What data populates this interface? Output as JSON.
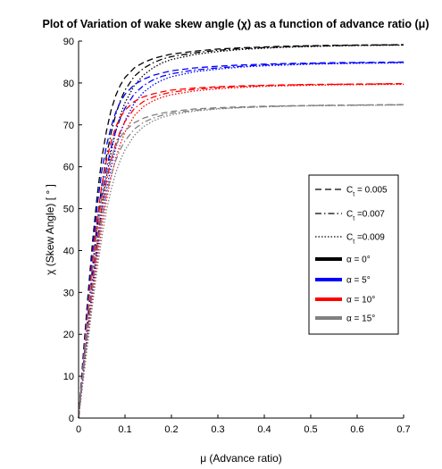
{
  "chart_data": {
    "type": "line",
    "title": "Plot of Variation of wake skew angle (χ) as a function of advance ratio (μ)",
    "xlabel": "μ (Advance ratio)",
    "ylabel": "χ (Skew Angle) [ ° ]",
    "xlim": [
      0,
      0.7
    ],
    "ylim": [
      0,
      90
    ],
    "xticks": [
      "0",
      "0.1",
      "0.2",
      "0.3",
      "0.4",
      "0.5",
      "0.6",
      "0.7"
    ],
    "yticks": [
      "0",
      "10",
      "20",
      "30",
      "40",
      "50",
      "60",
      "70",
      "80",
      "90"
    ],
    "grid": false,
    "legend_position": "right",
    "legend": [
      {
        "label": "C",
        "subscript": "t",
        "suffix": " = 0.005",
        "style": "dashed",
        "color": "#000000"
      },
      {
        "label": "C",
        "subscript": "t",
        "suffix": " =0.007",
        "style": "dashdot",
        "color": "#000000"
      },
      {
        "label": "C",
        "subscript": "t",
        "suffix": " =0.009",
        "style": "dotted",
        "color": "#000000"
      },
      {
        "label": "α = 0°",
        "style": "solid",
        "color": "#000000"
      },
      {
        "label": "α = 5°",
        "style": "solid",
        "color": "#0000ff"
      },
      {
        "label": "α = 10°",
        "style": "solid",
        "color": "#ff0000"
      },
      {
        "label": "α = 15°",
        "style": "solid",
        "color": "#808080"
      }
    ],
    "x": [
      0,
      0.01,
      0.02,
      0.03,
      0.04,
      0.05,
      0.06,
      0.07,
      0.08,
      0.09,
      0.1,
      0.12,
      0.14,
      0.16,
      0.18,
      0.2,
      0.25,
      0.3,
      0.35,
      0.4,
      0.45,
      0.5,
      0.55,
      0.6,
      0.65,
      0.7
    ],
    "series": [
      {
        "alpha": "0",
        "ct": "0.005",
        "color": "#000000",
        "style": "dashed",
        "values": [
          0,
          15,
          29,
          42,
          53,
          62,
          68.5,
          73.5,
          77,
          79.5,
          81.3,
          83.6,
          84.9,
          85.8,
          86.4,
          86.9,
          87.6,
          88.1,
          88.4,
          88.6,
          88.8,
          88.9,
          89.0,
          89.05,
          89.1,
          89.15
        ]
      },
      {
        "alpha": "0",
        "ct": "0.007",
        "color": "#000000",
        "style": "dashdot",
        "values": [
          0,
          12,
          24,
          36,
          46.5,
          55.5,
          62.5,
          68,
          72.5,
          75.8,
          78.3,
          81.6,
          83.5,
          84.8,
          85.7,
          86.3,
          87.2,
          87.8,
          88.2,
          88.45,
          88.65,
          88.8,
          88.9,
          89.0,
          89.05,
          89.1
        ]
      },
      {
        "alpha": "0",
        "ct": "0.009",
        "color": "#000000",
        "style": "dotted",
        "values": [
          0,
          10.5,
          21,
          31.5,
          41.5,
          50.5,
          57.5,
          63.5,
          68.5,
          72.3,
          75.3,
          79.4,
          81.9,
          83.6,
          84.8,
          85.6,
          86.8,
          87.5,
          88.0,
          88.3,
          88.55,
          88.7,
          88.85,
          88.95,
          89.0,
          89.05
        ]
      },
      {
        "alpha": "5",
        "ct": "0.005",
        "color": "#0000ff",
        "style": "dashed",
        "values": [
          0,
          14,
          27.5,
          40,
          50.5,
          59,
          65,
          69.5,
          73,
          75.5,
          77.3,
          79.6,
          80.9,
          81.8,
          82.4,
          82.9,
          83.6,
          84.0,
          84.3,
          84.5,
          84.65,
          84.75,
          84.85,
          84.9,
          84.95,
          85.0
        ]
      },
      {
        "alpha": "5",
        "ct": "0.007",
        "color": "#0000ff",
        "style": "dashdot",
        "values": [
          0,
          11.5,
          23,
          34.5,
          44.5,
          53,
          59.5,
          64.5,
          68.5,
          71.6,
          74,
          77.4,
          79.4,
          80.7,
          81.6,
          82.2,
          83.1,
          83.6,
          84.0,
          84.3,
          84.5,
          84.6,
          84.7,
          84.8,
          84.85,
          84.9
        ]
      },
      {
        "alpha": "5",
        "ct": "0.009",
        "color": "#0000ff",
        "style": "dotted",
        "values": [
          0,
          10,
          20,
          30,
          39.5,
          48,
          54.5,
          60,
          64.5,
          68,
          71,
          75.2,
          77.8,
          79.5,
          80.7,
          81.5,
          82.7,
          83.3,
          83.8,
          84.1,
          84.3,
          84.5,
          84.6,
          84.7,
          84.75,
          84.8
        ]
      },
      {
        "alpha": "10",
        "ct": "0.005",
        "color": "#ff0000",
        "style": "dashed",
        "values": [
          0,
          13,
          26,
          37.5,
          47.5,
          55.5,
          61.5,
          66,
          69.5,
          71.8,
          73.5,
          75.6,
          76.7,
          77.4,
          77.9,
          78.3,
          78.8,
          79.1,
          79.3,
          79.45,
          79.55,
          79.65,
          79.7,
          79.75,
          79.8,
          79.85
        ]
      },
      {
        "alpha": "10",
        "ct": "0.007",
        "color": "#ff0000",
        "style": "dashdot",
        "values": [
          0,
          11,
          22,
          32.5,
          42,
          50,
          56.5,
          61.5,
          65.5,
          68.5,
          70.8,
          73.9,
          75.6,
          76.6,
          77.3,
          77.8,
          78.5,
          78.9,
          79.15,
          79.35,
          79.5,
          79.6,
          79.65,
          79.7,
          79.75,
          79.8
        ]
      },
      {
        "alpha": "10",
        "ct": "0.009",
        "color": "#ff0000",
        "style": "dotted",
        "values": [
          0,
          9.5,
          19,
          28.5,
          37.5,
          45.5,
          52,
          57.5,
          62,
          65.5,
          68.3,
          72.2,
          74.4,
          75.7,
          76.6,
          77.2,
          78.1,
          78.6,
          78.95,
          79.2,
          79.35,
          79.45,
          79.55,
          79.6,
          79.65,
          79.7
        ]
      },
      {
        "alpha": "15",
        "ct": "0.005",
        "color": "#808080",
        "style": "dashed",
        "values": [
          0,
          12.5,
          24.5,
          35.5,
          45,
          52.5,
          58,
          62,
          65,
          67.1,
          68.6,
          70.5,
          71.6,
          72.3,
          72.8,
          73.2,
          73.8,
          74.1,
          74.3,
          74.45,
          74.55,
          74.65,
          74.7,
          74.75,
          74.8,
          74.85
        ]
      },
      {
        "alpha": "15",
        "ct": "0.007",
        "color": "#808080",
        "style": "dashdot",
        "values": [
          0,
          10.5,
          21,
          31,
          40,
          47.5,
          53.5,
          58,
          61.5,
          64.2,
          66.2,
          69,
          70.6,
          71.6,
          72.3,
          72.8,
          73.5,
          73.9,
          74.15,
          74.35,
          74.5,
          74.6,
          74.65,
          74.7,
          74.75,
          74.8
        ]
      },
      {
        "alpha": "15",
        "ct": "0.009",
        "color": "#808080",
        "style": "dotted",
        "values": [
          0,
          9,
          18,
          27,
          35.5,
          43,
          49.5,
          54.5,
          58.5,
          61.6,
          64,
          67.5,
          69.6,
          70.9,
          71.8,
          72.4,
          73.3,
          73.8,
          74.1,
          74.3,
          74.45,
          74.55,
          74.6,
          74.65,
          74.7,
          74.75
        ]
      }
    ]
  }
}
